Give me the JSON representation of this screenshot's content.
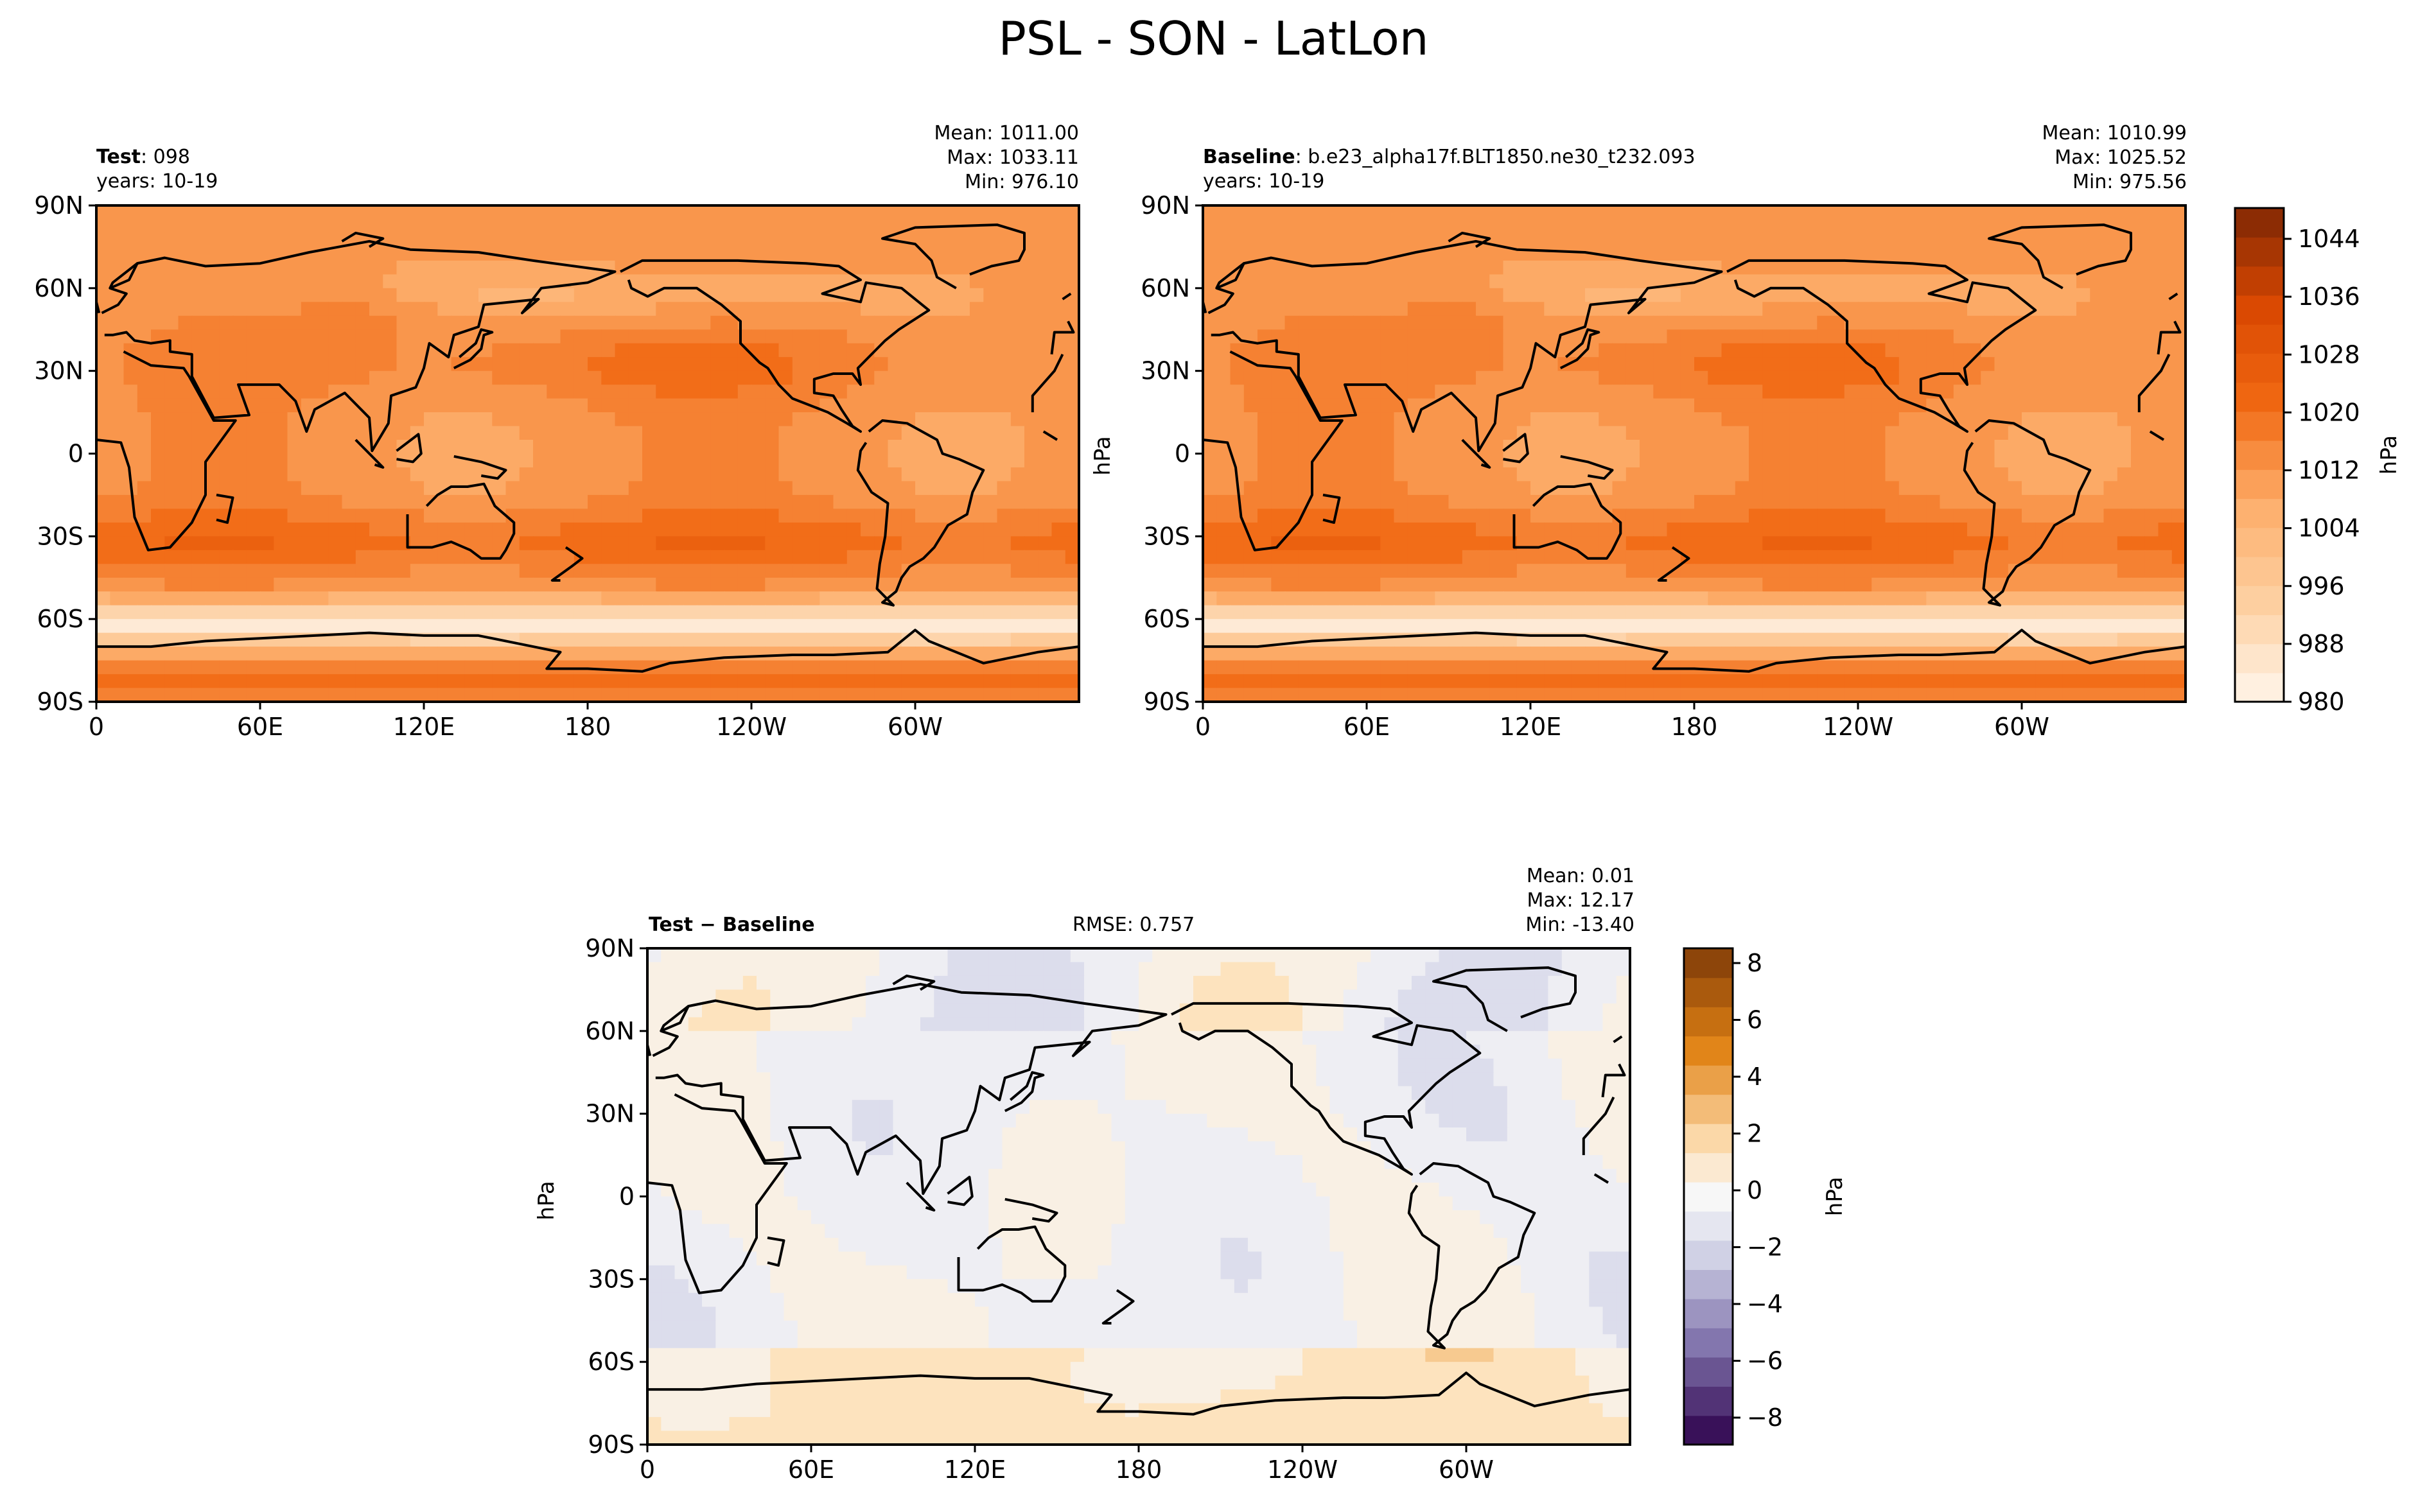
{
  "figure_title": "PSL - SON - LatLon",
  "chart_data": [
    {
      "type": "heatmap",
      "panel": "test",
      "label_bold": "Test",
      "label_rest": ": 098",
      "years": "years: 10-19",
      "stats": {
        "mean": "Mean: 1011.00",
        "max": "Max: 1033.11",
        "min": "Min: 976.10"
      },
      "x_ticks": [
        "0",
        "60E",
        "120E",
        "180",
        "120W",
        "60W"
      ],
      "y_ticks": [
        "90N",
        "60N",
        "30N",
        "0",
        "30S",
        "60S",
        "90S"
      ],
      "xlim": [
        0,
        360
      ],
      "ylim": [
        -90,
        90
      ],
      "colormap": "Oranges",
      "value_range": [
        980,
        1048
      ]
    },
    {
      "type": "heatmap",
      "panel": "baseline",
      "label_bold": "Baseline",
      "label_rest": ": b.e23_alpha17f.BLT1850.ne30_t232.093",
      "years": "years: 10-19",
      "stats": {
        "mean": "Mean: 1010.99",
        "max": "Max: 1025.52",
        "min": "Min: 975.56"
      },
      "x_ticks": [
        "0",
        "60E",
        "120E",
        "180",
        "120W",
        "60W"
      ],
      "y_ticks": [
        "90N",
        "60N",
        "30N",
        "0",
        "30S",
        "60S",
        "90S"
      ],
      "ylabel": "hPa",
      "xlim": [
        0,
        360
      ],
      "ylim": [
        -90,
        90
      ],
      "colormap": "Oranges",
      "value_range": [
        980,
        1048
      ],
      "colorbar": {
        "label": "hPa",
        "ticks": [
          "1044",
          "1036",
          "1028",
          "1020",
          "1012",
          "1004",
          "996",
          "988",
          "980"
        ]
      }
    },
    {
      "type": "heatmap",
      "panel": "difference",
      "label_bold": "Test − Baseline",
      "rmse": "RMSE: 0.757",
      "stats": {
        "mean": "Mean:  0.01",
        "max": "Max: 12.17",
        "min": "Min: -13.40"
      },
      "x_ticks": [
        "0",
        "60E",
        "120E",
        "180",
        "120W",
        "60W"
      ],
      "y_ticks": [
        "90N",
        "60N",
        "30N",
        "0",
        "30S",
        "60S",
        "90S"
      ],
      "ylabel": "hPa",
      "xlim": [
        0,
        360
      ],
      "ylim": [
        -90,
        90
      ],
      "colormap": "PuOr_r",
      "value_range": [
        -9,
        9
      ],
      "colorbar": {
        "label": "hPa",
        "ticks": [
          "8",
          "6",
          "4",
          "2",
          "0",
          "−2",
          "−4",
          "−6",
          "−8"
        ]
      }
    }
  ]
}
